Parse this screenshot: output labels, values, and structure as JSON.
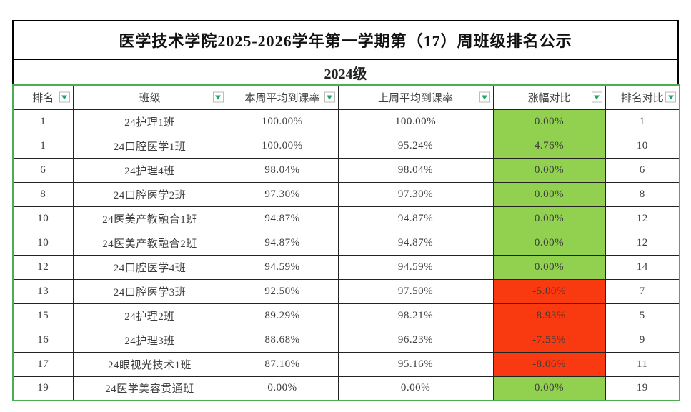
{
  "title": "医学技术学院2025-2026学年第一学期第（17）周班级排名公示",
  "subtitle": "2024级",
  "colors": {
    "positive_bg": "#92D050",
    "negative_bg": "#F9390F",
    "table_outer_border": "#4BAE55",
    "filter_arrow": "#21A366"
  },
  "table": {
    "columns": [
      {
        "label": "排名"
      },
      {
        "label": "班级"
      },
      {
        "label": "本周平均到课率"
      },
      {
        "label": "上周平均到课率"
      },
      {
        "label": "涨幅对比"
      },
      {
        "label": "排名对比"
      }
    ],
    "rows": [
      {
        "rank": "1",
        "class_name": "24护理1班",
        "this_week": "100.00%",
        "last_week": "100.00%",
        "change": "0.00%",
        "change_bg": "green",
        "rank_compare": "1"
      },
      {
        "rank": "1",
        "class_name": "24口腔医学1班",
        "this_week": "100.00%",
        "last_week": "95.24%",
        "change": "4.76%",
        "change_bg": "green",
        "rank_compare": "10"
      },
      {
        "rank": "6",
        "class_name": "24护理4班",
        "this_week": "98.04%",
        "last_week": "98.04%",
        "change": "0.00%",
        "change_bg": "green",
        "rank_compare": "6"
      },
      {
        "rank": "8",
        "class_name": "24口腔医学2班",
        "this_week": "97.30%",
        "last_week": "97.30%",
        "change": "0.00%",
        "change_bg": "green",
        "rank_compare": "8"
      },
      {
        "rank": "10",
        "class_name": "24医美产教融合1班",
        "this_week": "94.87%",
        "last_week": "94.87%",
        "change": "0.00%",
        "change_bg": "green",
        "rank_compare": "12"
      },
      {
        "rank": "10",
        "class_name": "24医美产教融合2班",
        "this_week": "94.87%",
        "last_week": "94.87%",
        "change": "0.00%",
        "change_bg": "green",
        "rank_compare": "12"
      },
      {
        "rank": "12",
        "class_name": "24口腔医学4班",
        "this_week": "94.59%",
        "last_week": "94.59%",
        "change": "0.00%",
        "change_bg": "green",
        "rank_compare": "14"
      },
      {
        "rank": "13",
        "class_name": "24口腔医学3班",
        "this_week": "92.50%",
        "last_week": "97.50%",
        "change": "-5.00%",
        "change_bg": "red",
        "rank_compare": "7"
      },
      {
        "rank": "15",
        "class_name": "24护理2班",
        "this_week": "89.29%",
        "last_week": "98.21%",
        "change": "-8.93%",
        "change_bg": "red",
        "rank_compare": "5"
      },
      {
        "rank": "16",
        "class_name": "24护理3班",
        "this_week": "88.68%",
        "last_week": "96.23%",
        "change": "-7.55%",
        "change_bg": "red",
        "rank_compare": "9"
      },
      {
        "rank": "17",
        "class_name": "24眼视光技术1班",
        "this_week": "87.10%",
        "last_week": "95.16%",
        "change": "-8.06%",
        "change_bg": "red",
        "rank_compare": "11"
      },
      {
        "rank": "19",
        "class_name": "24医学美容贯通班",
        "this_week": "0.00%",
        "last_week": "0.00%",
        "change": "0.00%",
        "change_bg": "green",
        "rank_compare": "19"
      }
    ]
  }
}
